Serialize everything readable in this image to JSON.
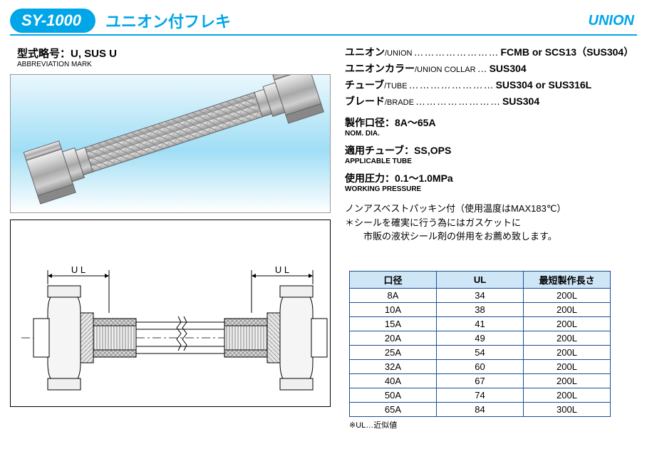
{
  "header": {
    "model": "SY-1000",
    "title_jp": "ユニオン付フレキ",
    "category": "UNION"
  },
  "abbrev": {
    "label": "型式略号：U, SUS U",
    "sublabel": "ABBREVIATION MARK"
  },
  "materials": [
    {
      "label_jp": "ユニオン",
      "label_en": "/UNION",
      "dots": "……………………",
      "value": "FCMB or SCS13（SUS304）"
    },
    {
      "label_jp": "ユニオンカラー",
      "label_en": "/UNION COLLAR",
      "dots": "…",
      "value": "SUS304"
    },
    {
      "label_jp": "チューブ",
      "label_en": "/TUBE",
      "dots": "……………………",
      "value": "SUS304 or SUS316L"
    },
    {
      "label_jp": "ブレード",
      "label_en": "/BRADE",
      "dots": "……………………",
      "value": "SUS304"
    }
  ],
  "params": [
    {
      "label": "製作口径：8A～65A",
      "sublabel": "NOM. DIA."
    },
    {
      "label": "適用チューブ：SS,OPS",
      "sublabel": "APPLICABLE TUBE"
    },
    {
      "label": "使用圧力：0.1～1.0MPa",
      "sublabel": "WORKING PRESSURE"
    }
  ],
  "note": {
    "line1": "ノンアスベストパッキン付（使用温度はMAX183℃）",
    "line2": "＊シールを確実に行う為にはガスケットに",
    "line3": "　　市販の液状シール剤の併用をお薦め致します。"
  },
  "table": {
    "headers": [
      "口径",
      "UL",
      "最短製作長さ"
    ],
    "rows": [
      [
        "8A",
        "34",
        "200L"
      ],
      [
        "10A",
        "38",
        "200L"
      ],
      [
        "15A",
        "41",
        "200L"
      ],
      [
        "20A",
        "49",
        "200L"
      ],
      [
        "25A",
        "54",
        "200L"
      ],
      [
        "32A",
        "60",
        "200L"
      ],
      [
        "40A",
        "67",
        "200L"
      ],
      [
        "50A",
        "74",
        "200L"
      ],
      [
        "65A",
        "84",
        "300L"
      ]
    ],
    "footnote": "※UL…近似値",
    "colors": {
      "header_bg": "#cfe6f7",
      "border": "#1a4d99"
    }
  },
  "drawing": {
    "ul_label": "U L"
  },
  "colors": {
    "brand": "#00a6e8",
    "steel_light": "#d8d8d8",
    "steel_mid": "#b0b0b0",
    "steel_dark": "#888"
  }
}
